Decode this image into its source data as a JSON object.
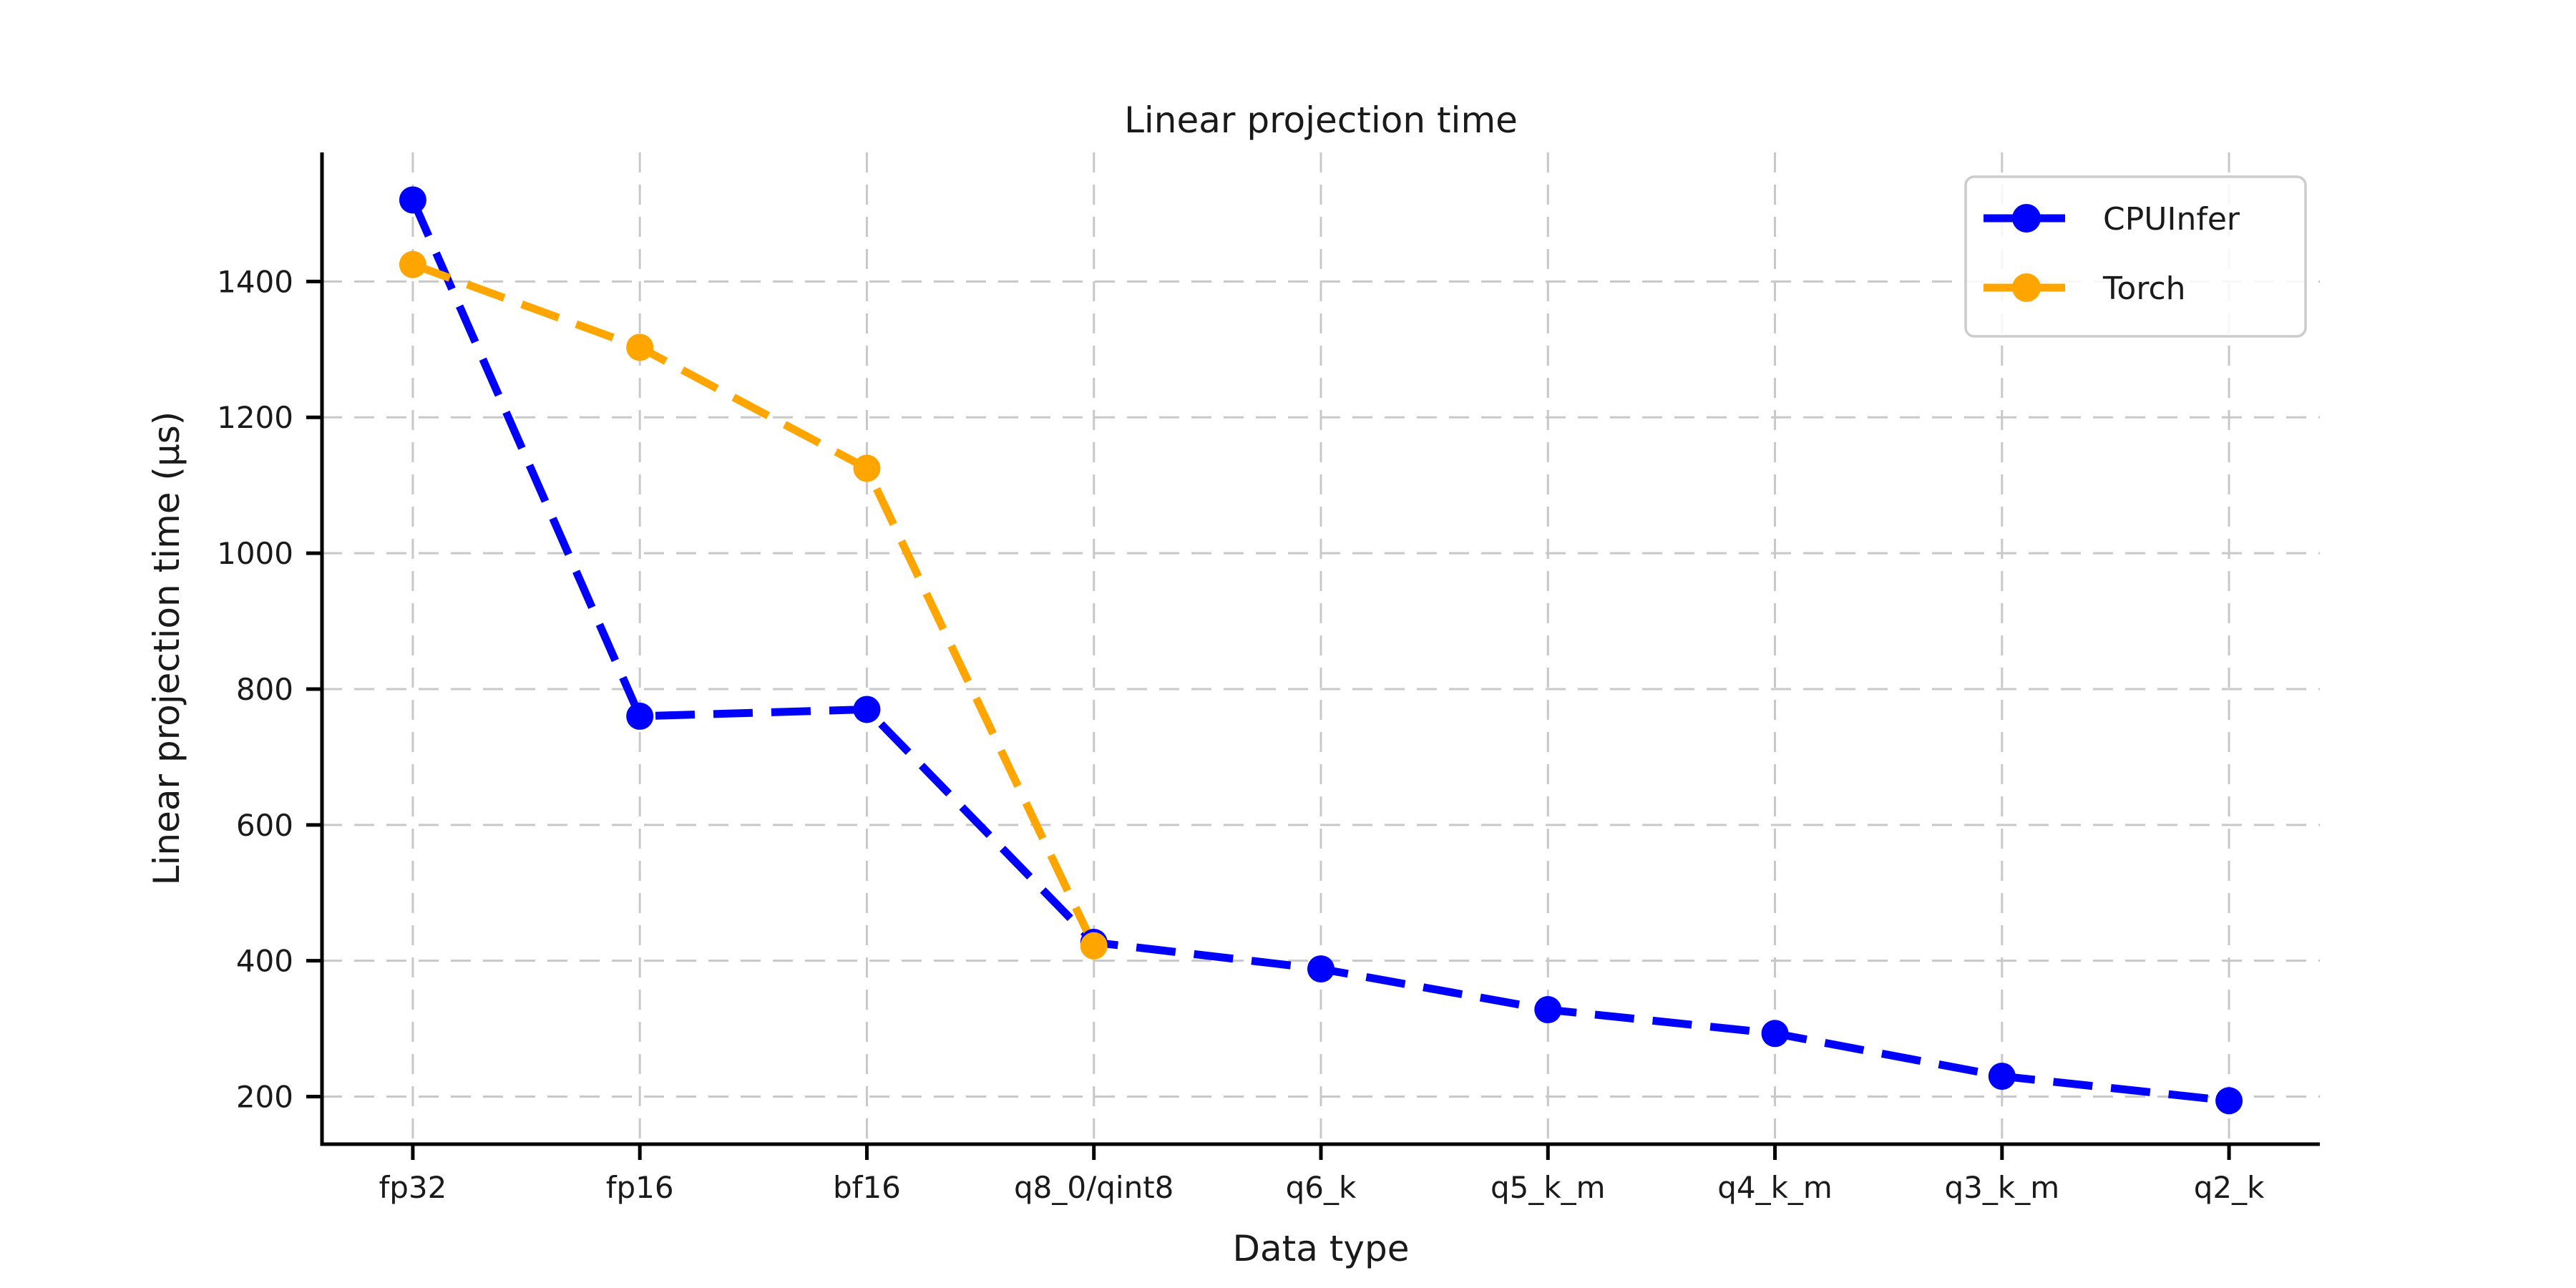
{
  "chart_data": {
    "type": "line",
    "title": "Linear projection time",
    "xlabel": "Data type",
    "ylabel": "Linear projection time (μs)",
    "categories": [
      "fp32",
      "fp16",
      "bf16",
      "q8_0/qint8",
      "q6_k",
      "q5_k_m",
      "q4_k_m",
      "q3_k_m",
      "q2_k"
    ],
    "series": [
      {
        "name": "CPUInfer",
        "color": "#0000ff",
        "values": [
          1520,
          760,
          770,
          427,
          388,
          328,
          293,
          230,
          194
        ]
      },
      {
        "name": "Torch",
        "color": "#ffa500",
        "values": [
          1425,
          1303,
          1125,
          422,
          null,
          null,
          null,
          null,
          null
        ]
      }
    ],
    "yticks": [
      200,
      400,
      600,
      800,
      1000,
      1200,
      1400
    ],
    "ylim": [
      130,
      1590
    ],
    "grid": true,
    "grid_color": "#c8c8c8",
    "spine_color": "#000000",
    "text_color": "#1a1a1a",
    "legend_position": "upper right",
    "legend_border_color": "#cccccc",
    "line_style": "dashed",
    "marker": "circle"
  }
}
